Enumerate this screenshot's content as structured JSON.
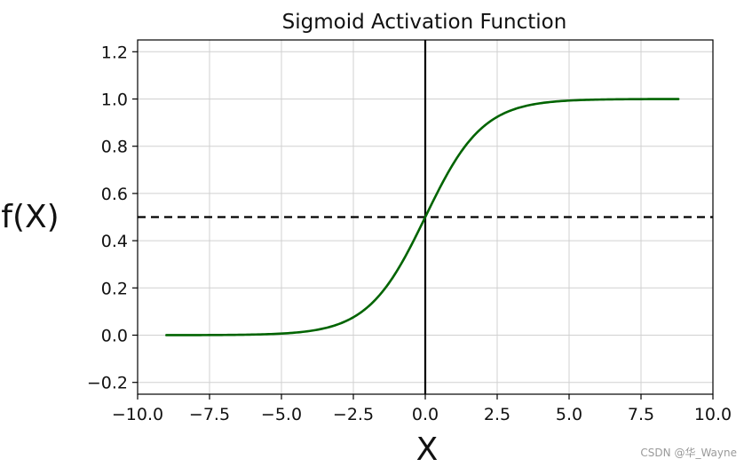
{
  "chart_data": {
    "type": "line",
    "title": "Sigmoid Activation Function",
    "xlabel": "X",
    "ylabel": "f(X)",
    "xlim": [
      -10,
      10
    ],
    "ylim": [
      -0.25,
      1.25
    ],
    "x_ticks": [
      -10,
      -7.5,
      -5,
      -2.5,
      0,
      2.5,
      5,
      7.5,
      10
    ],
    "x_tick_labels": [
      "−10.0",
      "−7.5",
      "−5.0",
      "−2.5",
      "0.0",
      "2.5",
      "5.0",
      "7.5",
      "10.0"
    ],
    "y_ticks": [
      -0.2,
      0,
      0.2,
      0.4,
      0.6,
      0.8,
      1.0,
      1.2
    ],
    "y_tick_labels": [
      "−0.2",
      "0.0",
      "0.2",
      "0.4",
      "0.6",
      "0.8",
      "1.0",
      "1.2"
    ],
    "grid": true,
    "series": [
      {
        "function": "sigmoid",
        "x_range": [
          -9,
          8.8
        ],
        "color": "#006400"
      }
    ],
    "reference_lines": [
      {
        "orientation": "horizontal",
        "value": 0.5,
        "style": "dashed",
        "color": "#000000"
      },
      {
        "orientation": "vertical",
        "value": 0,
        "style": "solid",
        "color": "#000000"
      }
    ]
  },
  "watermark": "CSDN @华_Wayne"
}
